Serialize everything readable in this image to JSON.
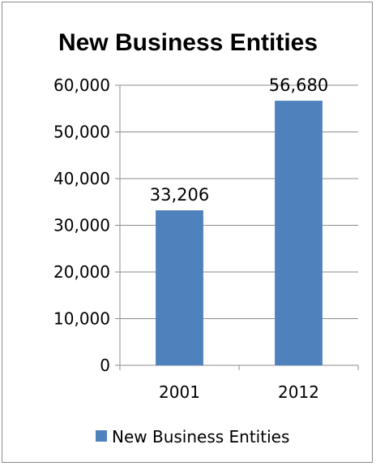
{
  "chart_data": {
    "type": "bar",
    "title": "New Business Entities",
    "categories": [
      "2001",
      "2012"
    ],
    "series": [
      {
        "name": "New Business Entities",
        "values": [
          33206,
          56680
        ],
        "color": "#4f81bd"
      }
    ],
    "data_labels": [
      "33,206",
      "56,680"
    ],
    "ylim": [
      0,
      60000
    ],
    "yticks": [
      0,
      10000,
      20000,
      30000,
      40000,
      50000,
      60000
    ],
    "ytick_labels": [
      "0",
      "10,000",
      "20,000",
      "30,000",
      "40,000",
      "50,000",
      "60,000"
    ],
    "grid": true,
    "legend_position": "bottom",
    "xlabel": "",
    "ylabel": ""
  }
}
